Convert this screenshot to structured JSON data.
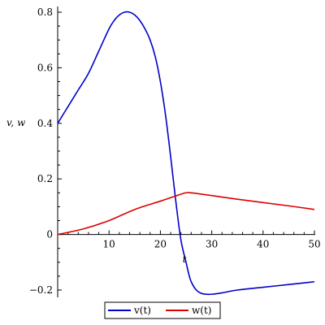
{
  "chart_data": {
    "type": "line",
    "xlabel": "t",
    "ylabel": "v, w",
    "xlim": [
      0,
      50
    ],
    "ylim": [
      -0.22,
      0.82
    ],
    "x_ticks": [
      10,
      20,
      30,
      40,
      50
    ],
    "x_tick_labels": [
      "10",
      "20",
      "30",
      "40",
      "50"
    ],
    "y_ticks": [
      -0.2,
      0,
      0.2,
      0.4,
      0.6,
      0.8
    ],
    "y_tick_labels": [
      "−0.2",
      "0",
      "0.2",
      "0.4",
      "0.6",
      "0.8"
    ],
    "grid": false,
    "legend": "bottom-center",
    "series": [
      {
        "name": "v(t)",
        "color": "#0000cc",
        "x": [
          0,
          2,
          4,
          6,
          8,
          10,
          11,
          12,
          13,
          14,
          15,
          16,
          17,
          18,
          19,
          20,
          21,
          22,
          23,
          24,
          25,
          25.5,
          26,
          27,
          28,
          29,
          30,
          32,
          35,
          40,
          45,
          50
        ],
        "y": [
          0.4,
          0.46,
          0.52,
          0.58,
          0.66,
          0.74,
          0.77,
          0.79,
          0.8,
          0.8,
          0.79,
          0.77,
          0.74,
          0.7,
          0.64,
          0.55,
          0.43,
          0.28,
          0.12,
          -0.02,
          -0.1,
          -0.14,
          -0.17,
          -0.2,
          -0.212,
          -0.215,
          -0.215,
          -0.21,
          -0.2,
          -0.19,
          -0.18,
          -0.17
        ]
      },
      {
        "name": "w(t)",
        "color": "#dd0000",
        "x": [
          0,
          5,
          10,
          15,
          20,
          24,
          25,
          26,
          30,
          35,
          40,
          45,
          50
        ],
        "y": [
          0.0,
          0.02,
          0.05,
          0.09,
          0.12,
          0.145,
          0.15,
          0.15,
          0.14,
          0.127,
          0.115,
          0.103,
          0.09
        ]
      }
    ]
  }
}
